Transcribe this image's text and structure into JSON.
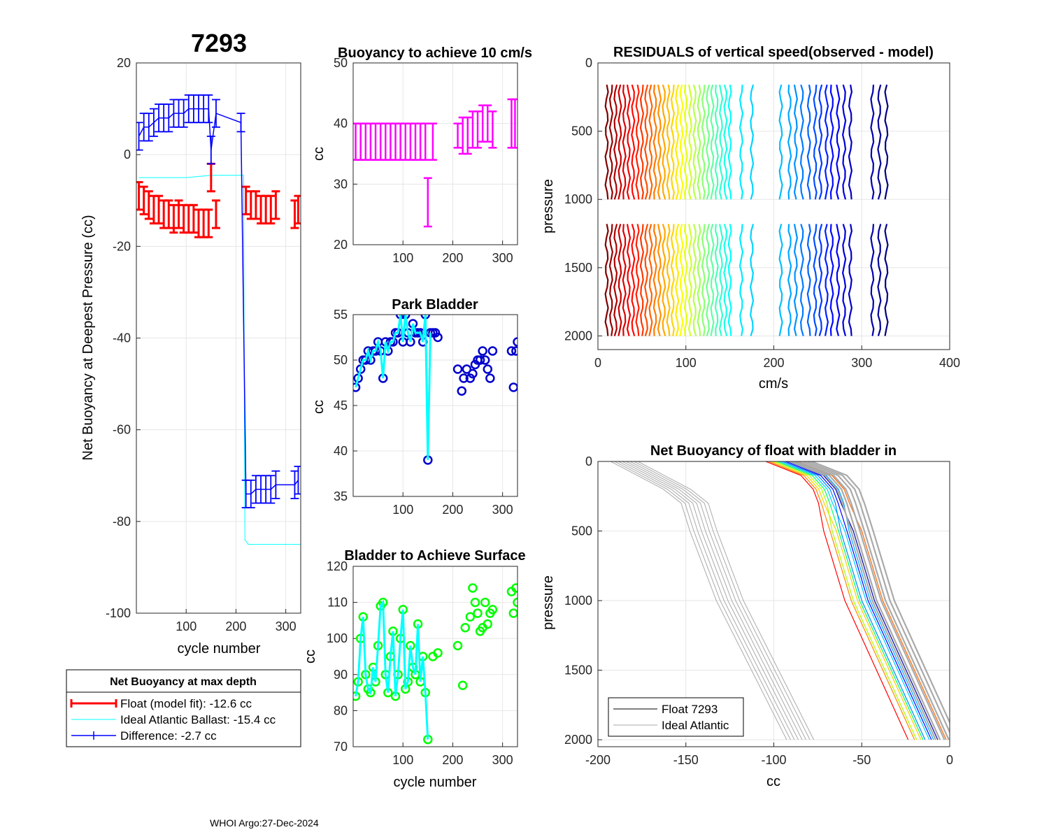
{
  "figure": {
    "footer": "WHOI Argo:27-Dec-2024",
    "colors": {
      "red": "#ff0000",
      "blue": "#0000ff",
      "cyan": "#00ffff",
      "magenta": "#ff00ff",
      "green": "#00ff00",
      "navy": "#0000cc",
      "gray": "#aaaaaa",
      "black": "#000000"
    }
  },
  "chart_data": [
    {
      "id": "net-buoyancy",
      "type": "scatter",
      "title": "7293",
      "xlabel": "cycle number",
      "ylabel": "Net Buoyancy at Deepest Pressure (cc)",
      "xlim": [
        0,
        330
      ],
      "ylim": [
        -100,
        20
      ],
      "xticks": [
        100,
        200,
        300
      ],
      "yticks": [
        20,
        0,
        -20,
        -40,
        -60,
        -80,
        -100
      ],
      "series": [
        {
          "name": "Float (model fit): -12.6 cc",
          "color": "#ff0000",
          "style": "errorbar",
          "x": [
            5,
            15,
            25,
            35,
            45,
            55,
            65,
            75,
            85,
            95,
            105,
            115,
            125,
            135,
            145,
            150,
            160,
            220,
            230,
            240,
            250,
            260,
            270,
            280,
            318,
            325
          ],
          "y": [
            -9,
            -10,
            -11,
            -12,
            -12,
            -13,
            -13,
            -14,
            -13,
            -14,
            -14,
            -14,
            -15,
            -15,
            -15,
            -5,
            -13,
            -10,
            -11,
            -11,
            -12,
            -12,
            -12,
            -11,
            -13,
            -12
          ],
          "err": [
            3,
            3,
            3,
            3,
            3,
            3,
            3,
            3,
            3,
            3,
            3,
            3,
            3,
            3,
            3,
            3,
            3,
            3,
            3,
            3,
            3,
            3,
            3,
            3,
            3,
            3
          ]
        },
        {
          "name": "Ideal Atlantic Ballast: -15.4 cc",
          "color": "#00ffff",
          "style": "line",
          "x": [
            5,
            50,
            100,
            150,
            215,
            218,
            225,
            260,
            300,
            330
          ],
          "y": [
            -5,
            -5,
            -5,
            -4.5,
            -4.5,
            -84,
            -85,
            -85,
            -85,
            -85
          ]
        },
        {
          "name": "Difference:  -2.7 cc",
          "color": "#0000ff",
          "style": "errorbar-line",
          "x": [
            5,
            15,
            25,
            35,
            45,
            55,
            65,
            75,
            85,
            95,
            105,
            115,
            125,
            135,
            145,
            150,
            160,
            210,
            220,
            230,
            240,
            250,
            260,
            270,
            280,
            318,
            325
          ],
          "y": [
            4,
            6,
            6,
            7,
            8,
            8,
            8,
            9,
            9,
            9,
            10,
            10,
            10,
            10,
            10,
            1,
            9,
            7,
            -74,
            -74,
            -73,
            -73,
            -73,
            -73,
            -72,
            -72,
            -71
          ],
          "err": [
            3,
            3,
            3,
            3,
            3,
            3,
            3,
            3,
            3,
            3,
            3,
            3,
            3,
            3,
            3,
            3,
            3,
            2,
            3,
            3,
            3,
            3,
            3,
            3,
            3,
            3,
            3
          ]
        }
      ],
      "legend": {
        "title": "Net Buoyancy at max depth",
        "placement": "below"
      }
    },
    {
      "id": "buoyancy-10cms",
      "type": "scatter",
      "title": "Buoyancy to achieve 10 cm/s",
      "xlabel": "",
      "ylabel": "cc",
      "xlim": [
        0,
        330
      ],
      "ylim": [
        20,
        50
      ],
      "xticks": [
        100,
        200,
        300
      ],
      "yticks": [
        50,
        40,
        30,
        20
      ],
      "series": [
        {
          "name": "buoyancy",
          "color": "#ff00ff",
          "x": [
            5,
            15,
            25,
            35,
            45,
            55,
            65,
            75,
            85,
            95,
            105,
            115,
            125,
            135,
            145,
            150,
            160,
            210,
            220,
            230,
            240,
            250,
            260,
            270,
            280,
            318,
            325
          ],
          "y": [
            37,
            37,
            37,
            37,
            37,
            37,
            37,
            37,
            37,
            37,
            37,
            37,
            37,
            37,
            37,
            27,
            37,
            38,
            38,
            38,
            39,
            39,
            40,
            40,
            39,
            40,
            40
          ],
          "err": [
            3,
            3,
            3,
            3,
            3,
            3,
            3,
            3,
            3,
            3,
            3,
            3,
            3,
            3,
            3,
            4,
            3,
            2,
            3,
            3,
            3,
            3,
            3,
            3,
            3,
            4,
            4
          ]
        }
      ]
    },
    {
      "id": "park-bladder",
      "type": "scatter",
      "title": "Park Bladder",
      "xlabel": "",
      "ylabel": "cc",
      "xlim": [
        0,
        330
      ],
      "ylim": [
        35,
        55
      ],
      "xticks": [
        100,
        200,
        300
      ],
      "yticks": [
        55,
        50,
        45,
        40,
        35
      ],
      "series": [
        {
          "name": "park",
          "color": "#0000cc",
          "marker": "o",
          "x": [
            5,
            10,
            15,
            20,
            25,
            30,
            35,
            40,
            45,
            50,
            55,
            60,
            65,
            70,
            75,
            80,
            85,
            90,
            95,
            100,
            105,
            110,
            115,
            120,
            125,
            130,
            135,
            140,
            145,
            150,
            155,
            160,
            165,
            170,
            210,
            218,
            222,
            228,
            235,
            240,
            245,
            250,
            255,
            260,
            265,
            270,
            275,
            280,
            318,
            322,
            327,
            330
          ],
          "y": [
            47,
            48,
            49,
            50,
            50,
            51,
            50,
            51,
            51,
            52,
            51,
            48,
            52,
            51,
            52,
            52,
            53,
            53,
            55,
            52,
            55,
            53,
            52,
            54,
            53,
            53,
            53,
            52,
            55,
            39,
            53,
            53,
            53,
            52.5,
            49,
            46.6,
            48,
            49,
            48,
            48.5,
            49.5,
            50,
            50,
            51,
            50,
            49,
            48,
            51,
            51,
            47,
            51,
            52
          ]
        },
        {
          "name": "park-line",
          "color": "#00ffff",
          "style": "line",
          "x": [
            5,
            10,
            15,
            20,
            25,
            30,
            35,
            40,
            45,
            50,
            55,
            60,
            65,
            70,
            75,
            80,
            85,
            90,
            95,
            100,
            105,
            110,
            115,
            120,
            125,
            130,
            135,
            140,
            145,
            150,
            155
          ],
          "y": [
            47,
            48,
            49,
            50,
            50,
            51,
            50,
            51,
            51,
            52,
            51,
            48,
            52,
            51,
            52,
            52,
            53,
            53,
            55,
            52,
            55,
            53,
            52,
            54,
            53,
            53,
            53,
            52,
            55,
            39,
            53
          ]
        }
      ]
    },
    {
      "id": "bladder-surface",
      "type": "scatter",
      "title": "Bladder to Achieve Surface",
      "xlabel": "cycle number",
      "ylabel": "cc",
      "xlim": [
        0,
        330
      ],
      "ylim": [
        70,
        120
      ],
      "xticks": [
        100,
        200,
        300
      ],
      "yticks": [
        120,
        110,
        100,
        90,
        80,
        70
      ],
      "series": [
        {
          "name": "surface",
          "color": "#00ff00",
          "marker": "o",
          "x": [
            5,
            10,
            15,
            20,
            25,
            30,
            35,
            40,
            45,
            50,
            55,
            60,
            65,
            70,
            75,
            80,
            85,
            90,
            95,
            100,
            105,
            110,
            115,
            120,
            125,
            130,
            135,
            140,
            145,
            150,
            160,
            170,
            210,
            220,
            225,
            235,
            240,
            245,
            250,
            255,
            260,
            265,
            270,
            275,
            280,
            318,
            322,
            327,
            330
          ],
          "y": [
            84,
            88,
            100,
            106,
            90,
            86,
            85,
            92,
            88,
            98,
            109,
            110,
            90,
            85,
            95,
            102,
            84,
            90,
            100,
            108,
            86,
            88,
            98,
            92,
            90,
            104,
            88,
            95,
            85,
            72,
            95,
            96,
            98,
            87,
            103,
            106,
            114,
            110,
            107,
            102,
            103,
            110,
            104,
            107,
            108,
            113,
            107,
            114,
            110
          ]
        },
        {
          "name": "surface-line",
          "color": "#00ffff",
          "style": "line",
          "x": [
            5,
            10,
            15,
            20,
            25,
            30,
            35,
            40,
            45,
            50,
            55,
            60,
            65,
            70,
            75,
            80,
            85,
            90,
            95,
            100,
            105,
            110,
            115,
            120,
            125,
            130,
            135,
            140,
            145,
            150
          ],
          "y": [
            84,
            88,
            100,
            106,
            90,
            86,
            85,
            92,
            88,
            98,
            109,
            110,
            90,
            85,
            95,
            102,
            84,
            90,
            100,
            108,
            86,
            88,
            98,
            92,
            90,
            104,
            88,
            95,
            85,
            72
          ]
        }
      ]
    },
    {
      "id": "residuals",
      "type": "line",
      "title": "RESIDUALS of vertical speed(observed - model)",
      "xlabel": "cm/s",
      "ylabel": "pressure",
      "xlim": [
        0,
        400
      ],
      "ylim": [
        0,
        2100
      ],
      "yreversed": true,
      "xticks": [
        0,
        100,
        200,
        300,
        400
      ],
      "yticks": [
        0,
        500,
        1000,
        1500,
        2000
      ],
      "profile_offsets": [
        10,
        15,
        20,
        25,
        30,
        35,
        40,
        45,
        50,
        55,
        60,
        65,
        70,
        75,
        80,
        85,
        90,
        95,
        100,
        105,
        110,
        115,
        120,
        125,
        130,
        135,
        140,
        145,
        150,
        163,
        175,
        208,
        218,
        225,
        232,
        240,
        247,
        253,
        260,
        266,
        273,
        280,
        287,
        312,
        320,
        328
      ],
      "segments": [
        [
          160,
          1000
        ],
        [
          1180,
          2000
        ]
      ]
    },
    {
      "id": "net-buoyancy-bladder-in",
      "type": "line",
      "title": "Net Buoyancy of float with bladder in",
      "xlabel": "cc",
      "ylabel": "pressure",
      "xlim": [
        -200,
        0
      ],
      "ylim": [
        0,
        2050
      ],
      "yreversed": true,
      "xticks": [
        -200,
        -150,
        -100,
        -50,
        0
      ],
      "yticks": [
        0,
        500,
        1000,
        1500,
        2000
      ],
      "legend": [
        {
          "label": "Float 7293",
          "color": "#000000"
        },
        {
          "label": "Ideal Atlantic",
          "color": "#aaaaaa"
        }
      ],
      "ideal_profile": {
        "pressure": [
          0,
          100,
          200,
          300,
          500,
          1000,
          1500,
          2000
        ],
        "cc": [
          -185,
          -170,
          -155,
          -145,
          -140,
          -125,
          -105,
          -85
        ]
      },
      "float_profile": {
        "pressure": [
          0,
          100,
          200,
          300,
          500,
          1000,
          1500,
          2000
        ],
        "cc": [
          -95,
          -75,
          -68,
          -65,
          -60,
          -48,
          -30,
          -12
        ]
      }
    }
  ]
}
